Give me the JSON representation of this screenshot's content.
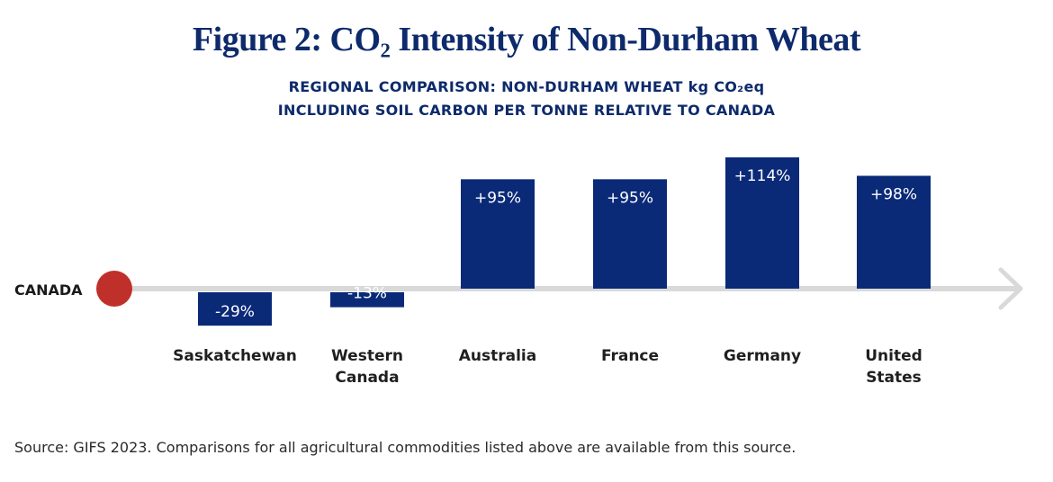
{
  "chart_data": {
    "type": "bar",
    "title": "Figure 2: CO₂ Intensity of Non-Durham Wheat",
    "subtitle_lines": [
      "REGIONAL COMPARISON: NON-DURHAM WHEAT kg CO₂eq",
      "INCLUDING SOIL CARBON PER TONNE RELATIVE TO CANADA"
    ],
    "baseline_label": "CANADA",
    "baseline_value": 0,
    "unit": "%",
    "categories": [
      [
        "Saskatchewan"
      ],
      [
        "Western",
        "Canada"
      ],
      [
        "Australia"
      ],
      [
        "France"
      ],
      [
        "Germany"
      ],
      [
        "United",
        "States"
      ]
    ],
    "values": [
      -29,
      -13,
      95,
      95,
      114,
      98
    ],
    "data_labels": [
      "-29%",
      "-13%",
      "+95%",
      "+95%",
      "+114%",
      "+98%"
    ],
    "ylim": [
      -29,
      114
    ],
    "colors": {
      "bar": "#0a2a78",
      "baseline_marker": "#c0302a",
      "axis": "#d9d9d9",
      "title": "#0d2a6b"
    }
  },
  "source": "Source: GIFS 2023. Comparisons for all agricultural commodities listed above are available from this source."
}
